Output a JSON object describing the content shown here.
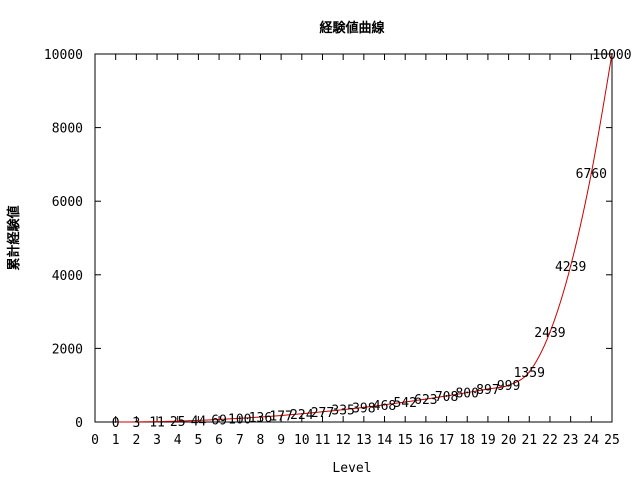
{
  "chart_data": {
    "type": "line",
    "title": "経験値曲線",
    "xlabel": "Level",
    "ylabel": "累計経験値",
    "xlim": [
      0,
      25
    ],
    "ylim": [
      0,
      10000
    ],
    "xticks": [
      "0",
      "1",
      "2",
      "3",
      "4",
      "5",
      "6",
      "7",
      "8",
      "9",
      "10",
      "11",
      "12",
      "13",
      "14",
      "15",
      "16",
      "17",
      "18",
      "19",
      "20",
      "21",
      "22",
      "23",
      "24",
      "25"
    ],
    "yticks": [
      "0",
      "2000",
      "4000",
      "6000",
      "8000",
      "10000"
    ],
    "grid": false,
    "line_color": "#cc0000",
    "series": [
      {
        "x": [
          1,
          2,
          3,
          4,
          5,
          6,
          7,
          8,
          9,
          10,
          11,
          12,
          13,
          14,
          15,
          16,
          17,
          18,
          19,
          20,
          21,
          22,
          23,
          24,
          25
        ],
        "values": [
          0,
          3,
          11,
          25,
          44,
          69,
          100,
          136,
          177,
          224,
          277,
          335,
          398,
          468,
          542,
          623,
          708,
          800,
          897,
          999,
          1359,
          2439,
          4239,
          6760,
          10000
        ],
        "labels": [
          "0",
          "3",
          "11",
          "25",
          "44",
          "69",
          "100",
          "136",
          "177",
          "224",
          "277",
          "335",
          "398",
          "468",
          "542",
          "623",
          "708",
          "800",
          "897",
          "999",
          "1359",
          "2439",
          "4239",
          "6760",
          "10000"
        ]
      }
    ]
  }
}
